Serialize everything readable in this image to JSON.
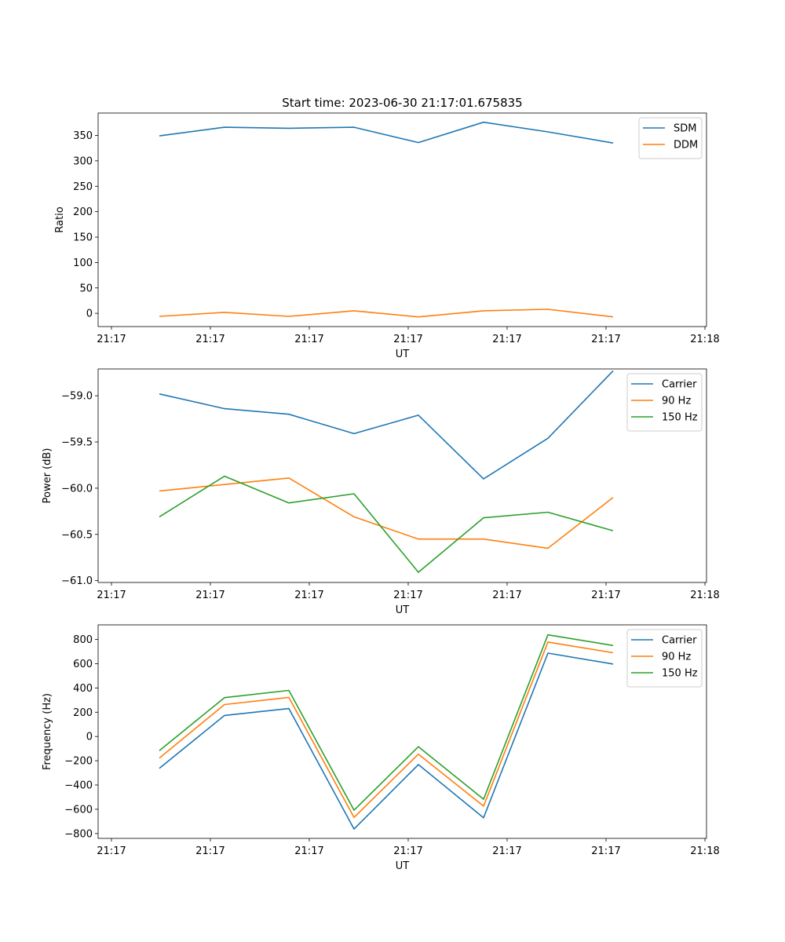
{
  "figure": {
    "title": "Start time: 2023-06-30 21:17:01.675835"
  },
  "x_tick_labels": [
    "21:17",
    "21:17",
    "21:17",
    "21:17",
    "21:17",
    "21:17",
    "21:18"
  ],
  "chart_data": [
    {
      "type": "line",
      "xlabel": "UT",
      "ylabel": "Ratio",
      "ylim": [
        -26,
        394
      ],
      "yticks": [
        0,
        50,
        100,
        150,
        200,
        250,
        300,
        350
      ],
      "ytick_labels": [
        "0",
        "50",
        "100",
        "150",
        "200",
        "250",
        "300",
        "350"
      ],
      "legend": "top-right",
      "series": [
        {
          "name": "SDM",
          "color": "#1f77b4",
          "values": [
            349,
            366,
            364,
            366,
            336,
            376,
            357,
            335
          ]
        },
        {
          "name": "DDM",
          "color": "#ff7f0e",
          "values": [
            -6,
            2,
            -6,
            5,
            -7,
            5,
            8,
            -7
          ]
        }
      ]
    },
    {
      "type": "line",
      "xlabel": "UT",
      "ylabel": "Power (dB)",
      "ylim": [
        -61.02,
        -58.71
      ],
      "yticks": [
        -59.0,
        -59.5,
        -60.0,
        -60.5,
        -61.0
      ],
      "ytick_labels": [
        "−59.0",
        "−59.5",
        "−60.0",
        "−60.5",
        "−61.0"
      ],
      "legend": "top-right",
      "series": [
        {
          "name": "Carrier",
          "color": "#1f77b4",
          "values": [
            -58.98,
            -59.14,
            -59.2,
            -59.41,
            -59.21,
            -59.9,
            -59.46,
            -58.73
          ]
        },
        {
          "name": "90 Hz",
          "color": "#ff7f0e",
          "values": [
            -60.03,
            -59.96,
            -59.89,
            -60.31,
            -60.55,
            -60.55,
            -60.65,
            -60.1
          ]
        },
        {
          "name": "150 Hz",
          "color": "#2ca02c",
          "values": [
            -60.31,
            -59.87,
            -60.16,
            -60.06,
            -60.91,
            -60.32,
            -60.26,
            -60.46
          ]
        }
      ]
    },
    {
      "type": "line",
      "xlabel": "UT",
      "ylabel": "Frequency (Hz)",
      "ylim": [
        -840,
        920
      ],
      "yticks": [
        800,
        600,
        400,
        200,
        0,
        -200,
        -400,
        -600,
        -800
      ],
      "ytick_labels": [
        "800",
        "600",
        "400",
        "200",
        "0",
        "−200",
        "−400",
        "−600",
        "−800"
      ],
      "legend": "top-right",
      "series": [
        {
          "name": "Carrier",
          "color": "#1f77b4",
          "values": [
            -262,
            173,
            230,
            -763,
            -232,
            -670,
            687,
            597
          ]
        },
        {
          "name": "90 Hz",
          "color": "#ff7f0e",
          "values": [
            -178,
            263,
            322,
            -667,
            -146,
            -574,
            778,
            690
          ]
        },
        {
          "name": "150 Hz",
          "color": "#2ca02c",
          "values": [
            -117,
            320,
            380,
            -608,
            -84,
            -517,
            838,
            750
          ]
        }
      ]
    }
  ]
}
